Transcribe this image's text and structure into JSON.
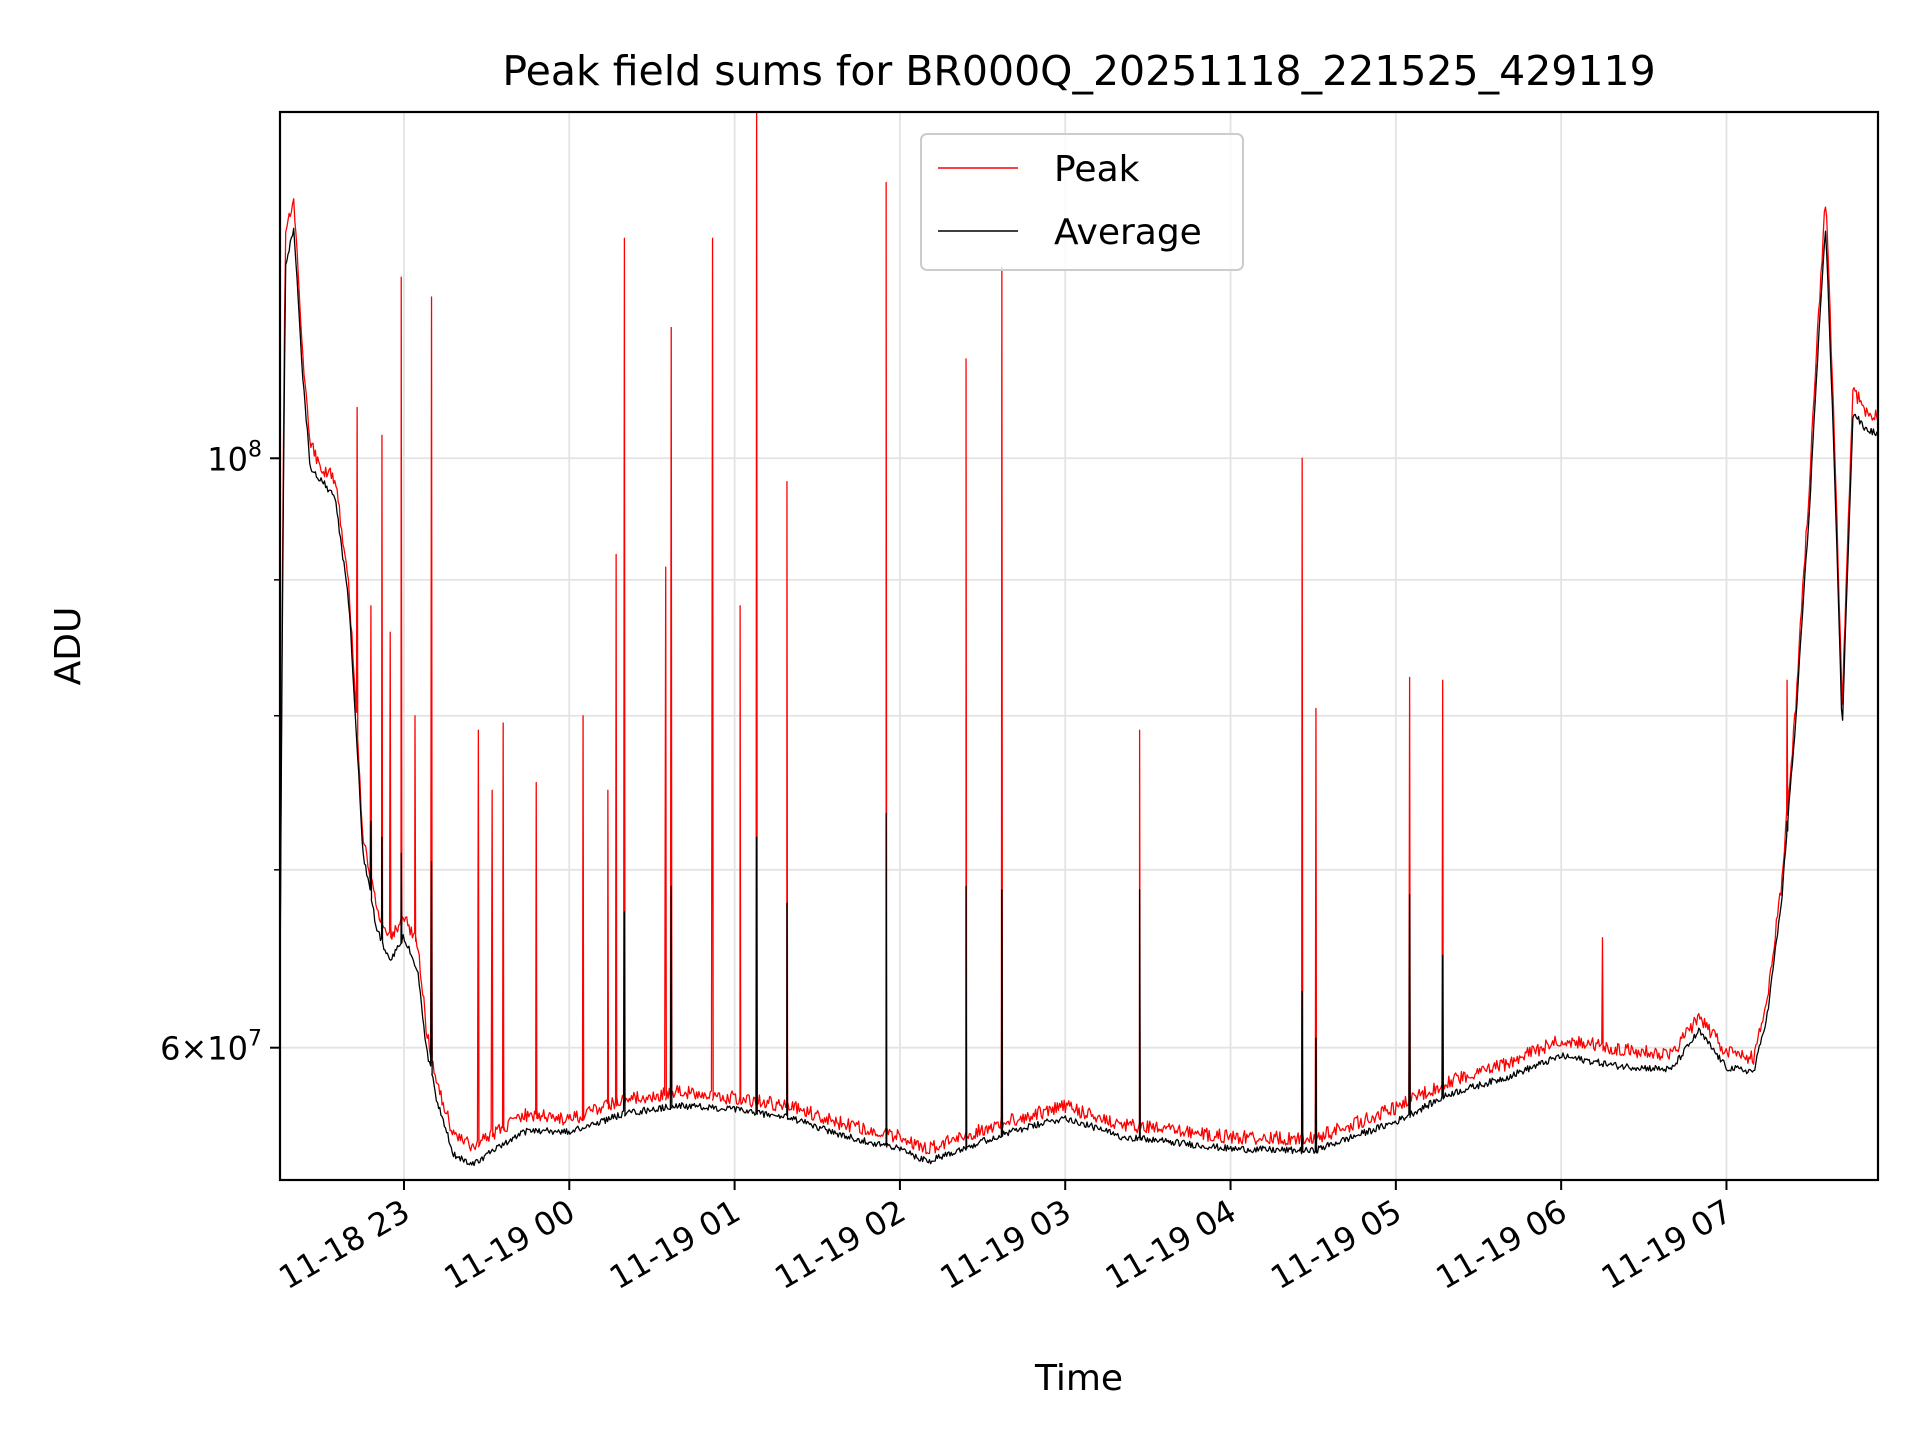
{
  "chart_data": {
    "type": "line",
    "title": "Peak field sums for BR000Q_20251118_221525_429119",
    "xlabel": "Time",
    "ylabel": "ADU",
    "yscale": "log",
    "ylim": [
      53500000,
      135000000
    ],
    "xlim": [
      "2025-11-18 22:15",
      "2025-11-19 07:55"
    ],
    "grid": true,
    "legend_position": "top-center",
    "x_ticks": [
      {
        "t": "2025-11-18 23:00",
        "label": "11-18 23"
      },
      {
        "t": "2025-11-19 00:00",
        "label": "11-19 00"
      },
      {
        "t": "2025-11-19 01:00",
        "label": "11-19 01"
      },
      {
        "t": "2025-11-19 02:00",
        "label": "11-19 02"
      },
      {
        "t": "2025-11-19 03:00",
        "label": "11-19 03"
      },
      {
        "t": "2025-11-19 04:00",
        "label": "11-19 04"
      },
      {
        "t": "2025-11-19 05:00",
        "label": "11-19 05"
      },
      {
        "t": "2025-11-19 06:00",
        "label": "11-19 06"
      },
      {
        "t": "2025-11-19 07:00",
        "label": "11-19 07"
      }
    ],
    "y_ticks_major": [
      {
        "value": 100000000,
        "mantissa": "",
        "base": "10",
        "exp": "8"
      },
      {
        "value": 60000000,
        "mantissa": "6",
        "base": "10",
        "exp": "7"
      }
    ],
    "y_ticks_minor": [
      70000000,
      80000000,
      90000000
    ],
    "series": [
      {
        "name": "Peak",
        "color": "#ff0000",
        "baseline": [
          [
            "2025-11-18 22:15",
            64000000
          ],
          [
            "2025-11-18 22:17",
            122000000
          ],
          [
            "2025-11-18 22:20",
            125000000
          ],
          [
            "2025-11-18 22:23",
            110000000
          ],
          [
            "2025-11-18 22:26",
            101000000
          ],
          [
            "2025-11-18 22:30",
            99000000
          ],
          [
            "2025-11-18 22:35",
            98000000
          ],
          [
            "2025-11-18 22:40",
            89000000
          ],
          [
            "2025-11-18 22:45",
            72000000
          ],
          [
            "2025-11-18 22:50",
            67500000
          ],
          [
            "2025-11-18 22:55",
            66000000
          ],
          [
            "2025-11-18 23:00",
            67000000
          ],
          [
            "2025-11-18 23:05",
            65500000
          ],
          [
            "2025-11-18 23:08",
            61000000
          ],
          [
            "2025-11-18 23:12",
            58000000
          ],
          [
            "2025-11-18 23:18",
            55500000
          ],
          [
            "2025-11-18 23:25",
            55000000
          ],
          [
            "2025-11-18 23:35",
            55800000
          ],
          [
            "2025-11-18 23:45",
            56500000
          ],
          [
            "2025-11-19 00:00",
            56200000
          ],
          [
            "2025-11-19 00:20",
            57200000
          ],
          [
            "2025-11-19 00:40",
            57600000
          ],
          [
            "2025-11-19 01:00",
            57300000
          ],
          [
            "2025-11-19 01:20",
            56900000
          ],
          [
            "2025-11-19 01:40",
            56000000
          ],
          [
            "2025-11-19 02:00",
            55400000
          ],
          [
            "2025-11-19 02:10",
            54800000
          ],
          [
            "2025-11-19 02:20",
            55300000
          ],
          [
            "2025-11-19 02:40",
            56200000
          ],
          [
            "2025-11-19 03:00",
            56900000
          ],
          [
            "2025-11-19 03:20",
            56000000
          ],
          [
            "2025-11-19 03:40",
            55700000
          ],
          [
            "2025-11-19 04:00",
            55400000
          ],
          [
            "2025-11-19 04:30",
            55300000
          ],
          [
            "2025-11-19 05:00",
            56800000
          ],
          [
            "2025-11-19 05:20",
            58200000
          ],
          [
            "2025-11-19 05:40",
            59000000
          ],
          [
            "2025-11-19 06:00",
            60300000
          ],
          [
            "2025-11-19 06:20",
            59800000
          ],
          [
            "2025-11-19 06:40",
            59500000
          ],
          [
            "2025-11-19 06:50",
            61500000
          ],
          [
            "2025-11-19 07:00",
            59600000
          ],
          [
            "2025-11-19 07:10",
            59300000
          ],
          [
            "2025-11-19 07:15",
            62500000
          ],
          [
            "2025-11-19 07:20",
            69000000
          ],
          [
            "2025-11-19 07:25",
            80000000
          ],
          [
            "2025-11-19 07:30",
            97000000
          ],
          [
            "2025-11-19 07:36",
            125000000
          ],
          [
            "2025-11-19 07:40",
            95000000
          ],
          [
            "2025-11-19 07:42",
            80000000
          ],
          [
            "2025-11-19 07:44",
            93000000
          ],
          [
            "2025-11-19 07:46",
            106000000
          ],
          [
            "2025-11-19 07:50",
            104000000
          ],
          [
            "2025-11-19 07:55",
            103500000
          ]
        ],
        "spikes": [
          [
            "2025-11-18 22:43",
            104500000
          ],
          [
            "2025-11-18 22:48",
            88000000
          ],
          [
            "2025-11-18 22:52",
            102000000
          ],
          [
            "2025-11-18 22:55",
            86000000
          ],
          [
            "2025-11-18 22:59",
            117000000
          ],
          [
            "2025-11-18 23:04",
            80000000
          ],
          [
            "2025-11-18 23:10",
            115000000
          ],
          [
            "2025-11-18 23:27",
            79000000
          ],
          [
            "2025-11-18 23:32",
            75000000
          ],
          [
            "2025-11-18 23:36",
            79500000
          ],
          [
            "2025-11-18 23:48",
            75500000
          ],
          [
            "2025-11-19 00:05",
            80000000
          ],
          [
            "2025-11-19 00:14",
            75000000
          ],
          [
            "2025-11-19 00:17",
            92000000
          ],
          [
            "2025-11-19 00:20",
            121000000
          ],
          [
            "2025-11-19 00:35",
            91000000
          ],
          [
            "2025-11-19 00:37",
            112000000
          ],
          [
            "2025-11-19 00:52",
            121000000
          ],
          [
            "2025-11-19 01:02",
            88000000
          ],
          [
            "2025-11-19 01:08",
            137000000
          ],
          [
            "2025-11-19 01:19",
            98000000
          ],
          [
            "2025-11-19 01:55",
            127000000
          ],
          [
            "2025-11-19 02:24",
            109000000
          ],
          [
            "2025-11-19 02:37",
            118000000
          ],
          [
            "2025-11-19 03:27",
            79000000
          ],
          [
            "2025-11-19 04:26",
            100000000
          ],
          [
            "2025-11-19 04:31",
            80500000
          ],
          [
            "2025-11-19 05:05",
            82700000
          ],
          [
            "2025-11-19 05:17",
            82500000
          ],
          [
            "2025-11-19 06:15",
            66000000
          ],
          [
            "2025-11-19 07:22",
            82500000
          ]
        ]
      },
      {
        "name": "Average",
        "color": "#000000",
        "baseline": [
          [
            "2025-11-18 22:15",
            63000000
          ],
          [
            "2025-11-18 22:17",
            118000000
          ],
          [
            "2025-11-18 22:20",
            122000000
          ],
          [
            "2025-11-18 22:23",
            108000000
          ],
          [
            "2025-11-18 22:26",
            99000000
          ],
          [
            "2025-11-18 22:30",
            98000000
          ],
          [
            "2025-11-18 22:35",
            96500000
          ],
          [
            "2025-11-18 22:40",
            88000000
          ],
          [
            "2025-11-18 22:45",
            71000000
          ],
          [
            "2025-11-18 22:50",
            66500000
          ],
          [
            "2025-11-18 22:55",
            64500000
          ],
          [
            "2025-11-18 23:00",
            66000000
          ],
          [
            "2025-11-18 23:05",
            64000000
          ],
          [
            "2025-11-18 23:08",
            60000000
          ],
          [
            "2025-11-18 23:12",
            57200000
          ],
          [
            "2025-11-18 23:18",
            54600000
          ],
          [
            "2025-11-18 23:25",
            54200000
          ],
          [
            "2025-11-18 23:35",
            55000000
          ],
          [
            "2025-11-18 23:45",
            55800000
          ],
          [
            "2025-11-19 00:00",
            55700000
          ],
          [
            "2025-11-19 00:20",
            56600000
          ],
          [
            "2025-11-19 00:40",
            57000000
          ],
          [
            "2025-11-19 01:00",
            56800000
          ],
          [
            "2025-11-19 01:20",
            56400000
          ],
          [
            "2025-11-19 01:40",
            55500000
          ],
          [
            "2025-11-19 02:00",
            54900000
          ],
          [
            "2025-11-19 02:10",
            54300000
          ],
          [
            "2025-11-19 02:20",
            54800000
          ],
          [
            "2025-11-19 02:40",
            55700000
          ],
          [
            "2025-11-19 03:00",
            56400000
          ],
          [
            "2025-11-19 03:20",
            55500000
          ],
          [
            "2025-11-19 03:40",
            55200000
          ],
          [
            "2025-11-19 04:00",
            54900000
          ],
          [
            "2025-11-19 04:30",
            54800000
          ],
          [
            "2025-11-19 05:00",
            56200000
          ],
          [
            "2025-11-19 05:20",
            57600000
          ],
          [
            "2025-11-19 05:40",
            58400000
          ],
          [
            "2025-11-19 06:00",
            59500000
          ],
          [
            "2025-11-19 06:20",
            59000000
          ],
          [
            "2025-11-19 06:40",
            58800000
          ],
          [
            "2025-11-19 06:50",
            60800000
          ],
          [
            "2025-11-19 07:00",
            58900000
          ],
          [
            "2025-11-19 07:10",
            58700000
          ],
          [
            "2025-11-19 07:15",
            61800000
          ],
          [
            "2025-11-19 07:20",
            68000000
          ],
          [
            "2025-11-19 07:25",
            79000000
          ],
          [
            "2025-11-19 07:30",
            95000000
          ],
          [
            "2025-11-19 07:36",
            122000000
          ],
          [
            "2025-11-19 07:40",
            93000000
          ],
          [
            "2025-11-19 07:42",
            78500000
          ],
          [
            "2025-11-19 07:44",
            91000000
          ],
          [
            "2025-11-19 07:46",
            104000000
          ],
          [
            "2025-11-19 07:50",
            102500000
          ],
          [
            "2025-11-19 07:55",
            102000000
          ]
        ],
        "spikes": [
          [
            "2025-11-18 22:48",
            73000000
          ],
          [
            "2025-11-18 22:52",
            72000000
          ],
          [
            "2025-11-18 22:59",
            71000000
          ],
          [
            "2025-11-18 23:10",
            70500000
          ],
          [
            "2025-11-19 00:20",
            67500000
          ],
          [
            "2025-11-19 00:37",
            69000000
          ],
          [
            "2025-11-19 01:08",
            72000000
          ],
          [
            "2025-11-19 01:19",
            68000000
          ],
          [
            "2025-11-19 01:55",
            73500000
          ],
          [
            "2025-11-19 02:24",
            69000000
          ],
          [
            "2025-11-19 02:37",
            68800000
          ],
          [
            "2025-11-19 03:27",
            68800000
          ],
          [
            "2025-11-19 04:26",
            63000000
          ],
          [
            "2025-11-19 04:31",
            60500000
          ],
          [
            "2025-11-19 05:05",
            68500000
          ],
          [
            "2025-11-19 05:17",
            65000000
          ],
          [
            "2025-11-19 07:22",
            73000000
          ]
        ]
      }
    ]
  }
}
